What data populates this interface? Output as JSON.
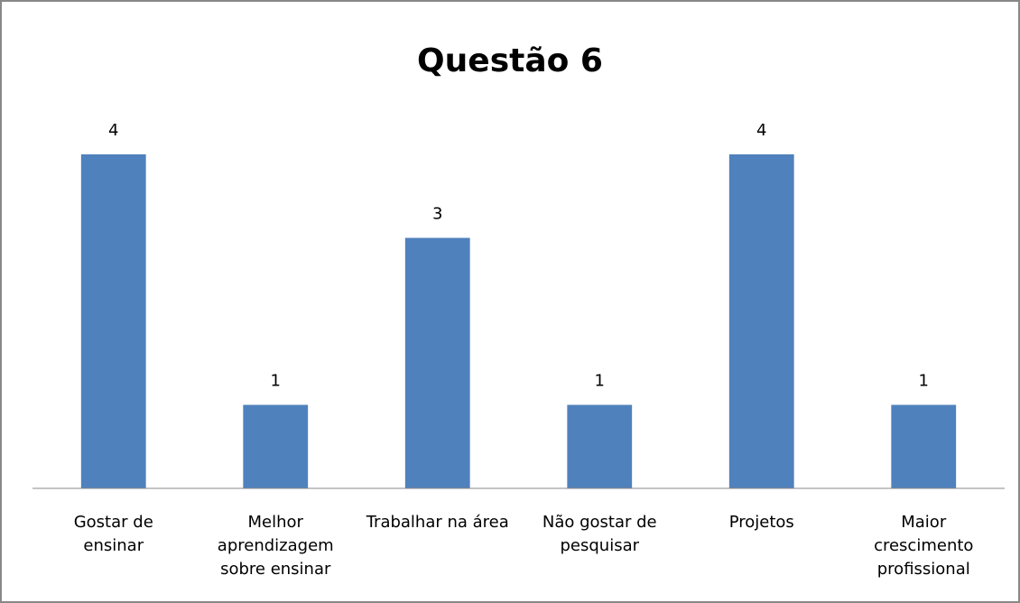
{
  "chart_data": {
    "type": "bar",
    "title": "Questão 6",
    "categories": [
      "Gostar de ensinar",
      "Melhor aprendizagem sobre ensinar",
      "Trabalhar na área",
      "Não gostar de pesquisar",
      "Projetos",
      "Maior crescimento profissional"
    ],
    "values": [
      4,
      1,
      3,
      1,
      4,
      1
    ],
    "color": "#4f81bd",
    "ylim": [
      0,
      5
    ],
    "grid": false
  }
}
